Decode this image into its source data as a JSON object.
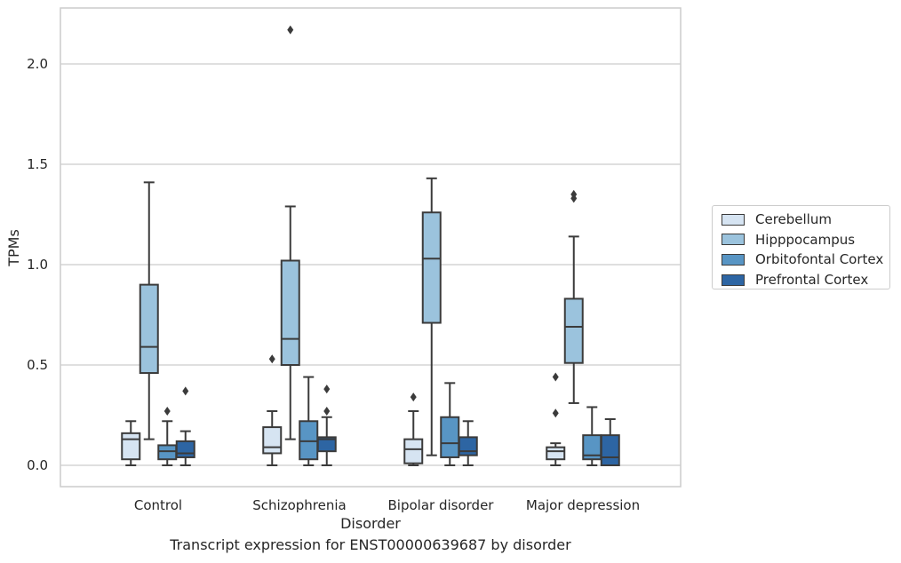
{
  "caption": "Transcript expression for ENST00000639687 by disorder",
  "chart_data": {
    "type": "box",
    "xlabel": "Disorder",
    "ylabel": "TPMs",
    "ylim": [
      -0.1,
      2.3
    ],
    "yticks": [
      0.0,
      0.5,
      1.0,
      1.5,
      2.0
    ],
    "ytick_labels": [
      "0.0",
      "0.5",
      "1.0",
      "1.5",
      "2.0"
    ],
    "grid": true,
    "legend_position": "right",
    "categories": [
      "Control",
      "Schizophrenia",
      "Bipolar disorder",
      "Major depression"
    ],
    "series": [
      {
        "name": "Cerebellum",
        "color": "#d6e4f2",
        "boxes": [
          {
            "whislo": 0.0,
            "q1": 0.03,
            "med": 0.13,
            "q3": 0.16,
            "whishi": 0.22,
            "fliers": []
          },
          {
            "whislo": 0.0,
            "q1": 0.06,
            "med": 0.09,
            "q3": 0.19,
            "whishi": 0.27,
            "fliers": [
              0.53
            ]
          },
          {
            "whislo": 0.0,
            "q1": 0.01,
            "med": 0.08,
            "q3": 0.13,
            "whishi": 0.27,
            "fliers": [
              0.34
            ]
          },
          {
            "whislo": 0.0,
            "q1": 0.03,
            "med": 0.07,
            "q3": 0.09,
            "whishi": 0.11,
            "fliers": [
              0.26,
              0.44
            ]
          }
        ]
      },
      {
        "name": "Hipppocampus",
        "color": "#9bc3dd",
        "boxes": [
          {
            "whislo": 0.13,
            "q1": 0.46,
            "med": 0.59,
            "q3": 0.9,
            "whishi": 1.41,
            "fliers": []
          },
          {
            "whislo": 0.13,
            "q1": 0.5,
            "med": 0.63,
            "q3": 1.02,
            "whishi": 1.29,
            "fliers": [
              2.17
            ]
          },
          {
            "whislo": 0.05,
            "q1": 0.71,
            "med": 1.03,
            "q3": 1.26,
            "whishi": 1.43,
            "fliers": []
          },
          {
            "whislo": 0.31,
            "q1": 0.51,
            "med": 0.69,
            "q3": 0.83,
            "whishi": 1.14,
            "fliers": [
              1.33,
              1.35
            ]
          }
        ]
      },
      {
        "name": "Orbitofontal Cortex",
        "color": "#5895c4",
        "boxes": [
          {
            "whislo": 0.0,
            "q1": 0.03,
            "med": 0.07,
            "q3": 0.1,
            "whishi": 0.22,
            "fliers": [
              0.27
            ]
          },
          {
            "whislo": 0.0,
            "q1": 0.03,
            "med": 0.12,
            "q3": 0.22,
            "whishi": 0.44,
            "fliers": []
          },
          {
            "whislo": 0.0,
            "q1": 0.04,
            "med": 0.11,
            "q3": 0.24,
            "whishi": 0.41,
            "fliers": []
          },
          {
            "whislo": 0.0,
            "q1": 0.03,
            "med": 0.05,
            "q3": 0.15,
            "whishi": 0.29,
            "fliers": []
          }
        ]
      },
      {
        "name": "Prefrontal Cortex",
        "color": "#2d65a3",
        "boxes": [
          {
            "whislo": 0.0,
            "q1": 0.04,
            "med": 0.06,
            "q3": 0.12,
            "whishi": 0.17,
            "fliers": [
              0.37
            ]
          },
          {
            "whislo": 0.0,
            "q1": 0.07,
            "med": 0.13,
            "q3": 0.14,
            "whishi": 0.24,
            "fliers": [
              0.27,
              0.38
            ]
          },
          {
            "whislo": 0.0,
            "q1": 0.05,
            "med": 0.07,
            "q3": 0.14,
            "whishi": 0.22,
            "fliers": []
          },
          {
            "whislo": 0.0,
            "q1": 0.0,
            "med": 0.04,
            "q3": 0.15,
            "whishi": 0.23,
            "fliers": []
          }
        ]
      }
    ]
  }
}
